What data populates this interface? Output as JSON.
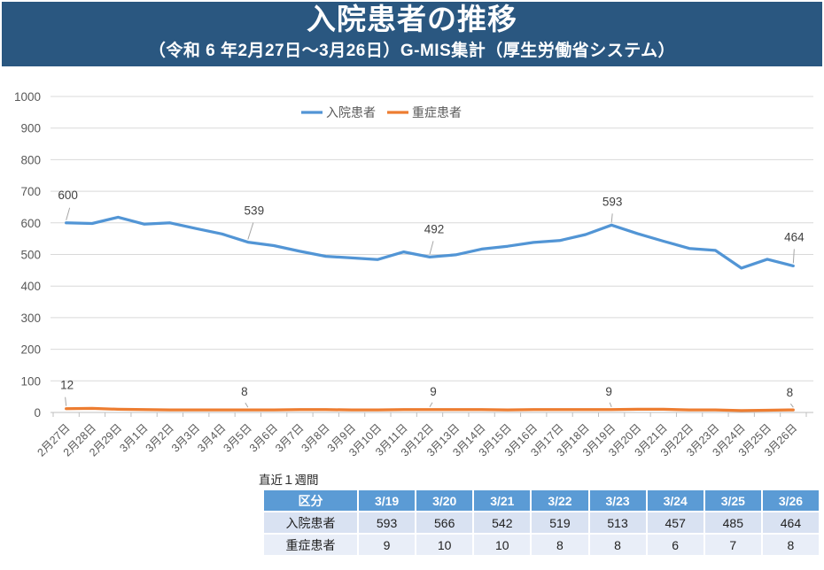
{
  "header": {
    "title": "入院患者の推移",
    "subtitle": "（令和 6 年2月27日～3月26日）G-MIS集計（厚生労働省システム）"
  },
  "chart_data": {
    "type": "line",
    "title": "",
    "xlabel": "",
    "ylabel": "",
    "ylim": [
      0,
      1000
    ],
    "ytick_step": 100,
    "grid": true,
    "legend_position": "top",
    "categories": [
      "2月27日",
      "2月28日",
      "2月29日",
      "3月1日",
      "3月2日",
      "3月3日",
      "3月4日",
      "3月5日",
      "3月6日",
      "3月7日",
      "3月8日",
      "3月9日",
      "3月10日",
      "3月11日",
      "3月12日",
      "3月13日",
      "3月14日",
      "3月15日",
      "3月16日",
      "3月17日",
      "3月18日",
      "3月19日",
      "3月20日",
      "3月21日",
      "3月22日",
      "3月23日",
      "3月24日",
      "3月25日",
      "3月26日"
    ],
    "series": [
      {
        "name": "入院患者",
        "color": "#5295d5",
        "values": [
          600,
          598,
          618,
          596,
          600,
          582,
          565,
          539,
          528,
          510,
          494,
          489,
          484,
          508,
          492,
          499,
          517,
          526,
          538,
          544,
          563,
          593,
          566,
          542,
          519,
          513,
          457,
          485,
          464
        ]
      },
      {
        "name": "重症患者",
        "color": "#ed7d31",
        "values": [
          12,
          13,
          10,
          9,
          8,
          8,
          8,
          8,
          8,
          9,
          9,
          8,
          8,
          9,
          9,
          9,
          9,
          8,
          9,
          9,
          9,
          9,
          10,
          10,
          8,
          8,
          6,
          7,
          8
        ]
      }
    ],
    "annotations": [
      {
        "series": 0,
        "index": 0,
        "label": "600"
      },
      {
        "series": 0,
        "index": 7,
        "label": "539"
      },
      {
        "series": 0,
        "index": 14,
        "label": "492"
      },
      {
        "series": 0,
        "index": 21,
        "label": "593"
      },
      {
        "series": 0,
        "index": 28,
        "label": "464"
      },
      {
        "series": 1,
        "index": 0,
        "label": "12"
      },
      {
        "series": 1,
        "index": 7,
        "label": "8"
      },
      {
        "series": 1,
        "index": 14,
        "label": "9"
      },
      {
        "series": 1,
        "index": 21,
        "label": "9"
      },
      {
        "series": 1,
        "index": 28,
        "label": "8"
      }
    ]
  },
  "table": {
    "caption": "直近１週間",
    "header": [
      "区分",
      "3/19",
      "3/20",
      "3/21",
      "3/22",
      "3/23",
      "3/24",
      "3/25",
      "3/26"
    ],
    "rows": [
      {
        "label": "入院患者",
        "values": [
          "593",
          "566",
          "542",
          "519",
          "513",
          "457",
          "485",
          "464"
        ]
      },
      {
        "label": "重症患者",
        "values": [
          "9",
          "10",
          "10",
          "8",
          "8",
          "6",
          "7",
          "8"
        ]
      }
    ]
  },
  "colors": {
    "header_bg": "#2a5780",
    "series_blue": "#5295d5",
    "series_orange": "#ed7d31",
    "grid_line": "#d9d9d9",
    "axis_line": "#bfbfbf",
    "axis_text": "#595959",
    "label_text": "#404040",
    "table_header_bg": "#5b9bd5",
    "table_row1_bg": "#d9e2f2",
    "table_row2_bg": "#e9eef8"
  }
}
